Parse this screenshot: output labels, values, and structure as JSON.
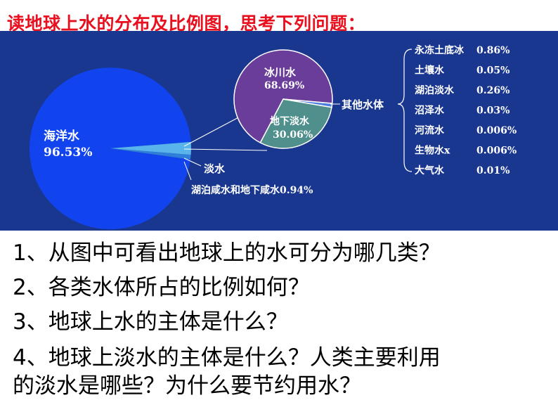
{
  "title": "读地球上水的分布及比例图，思考下列问题：",
  "chart_data": {
    "type": "pie",
    "title": "",
    "main_pie": {
      "slices": [
        {
          "name": "海洋水",
          "value": 96.53,
          "label": "96.53%"
        },
        {
          "name": "湖泊咸水和地下咸水",
          "value": 0.94,
          "label": "0.94%"
        },
        {
          "name": "淡水",
          "value": 2.53,
          "label": ""
        }
      ],
      "colors": {
        "ocean": "#1144ee",
        "saline": "#2f7fd8",
        "fresh": "#5ab4ec"
      }
    },
    "fresh_pie": {
      "slices": [
        {
          "name": "冰川水",
          "value": 68.69,
          "label": "68.69%"
        },
        {
          "name": "地下淡水",
          "value": 30.06,
          "label": "30.06%"
        },
        {
          "name": "其他水体",
          "value": 1.25,
          "label": ""
        }
      ],
      "colors": {
        "glacier": "#6a3d9a",
        "ground": "#4f8f8c",
        "other": "#4a7fe0"
      }
    },
    "other_water": [
      {
        "name": "永冻土底冰",
        "value": "0.86%"
      },
      {
        "name": "土壤水",
        "value": "0.05%"
      },
      {
        "name": "湖泊淡水",
        "value": "0.26%"
      },
      {
        "name": "沼泽水",
        "value": "0.03%"
      },
      {
        "name": "河流水",
        "value": "0.006%"
      },
      {
        "name": "生物水x",
        "value": "0.006%"
      },
      {
        "name": "大气水",
        "value": "0.01%"
      }
    ]
  },
  "labels": {
    "ocean_name": "海洋水",
    "ocean_value": "96.53%",
    "fresh_name": "淡水",
    "saline": "湖泊咸水和地下咸水0.94%",
    "glacier_name": "冰川水",
    "glacier_value": "68.69%",
    "ground_name": "地下淡水",
    "ground_value": "30.06%",
    "other_name": "其他水体"
  },
  "questions": [
    "1、从图中可看出地球上的水可分为哪几类？",
    "2、各类水体所占的比例如何？",
    "3、地球上水的主体是什么？",
    "4、地球上淡水的主体是什么？人类主要利用",
    "的淡水是哪些？为什么要节约用水？"
  ]
}
